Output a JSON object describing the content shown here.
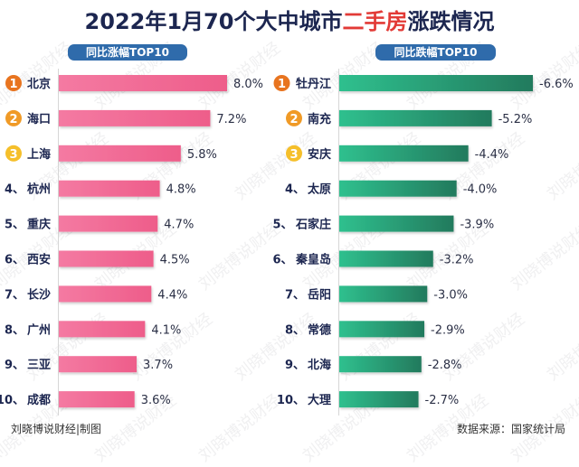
{
  "title": {
    "prefix": "2022年1月70个大中城市",
    "highlight": "二手房",
    "suffix": "涨跌情况"
  },
  "colors": {
    "rise_bar": "#f06c95",
    "fall_bar": "#2aa57a",
    "pill": "#2f6bab",
    "badge_1": "#e8741f",
    "badge_2": "#f09a26",
    "badge_3": "#f5bf2a",
    "highlight": "#e23a36"
  },
  "watermark": "刘晓博说财经",
  "footer": {
    "credit": "刘晓博说财经|制图",
    "source": "数据来源：国家统计局"
  },
  "chart_data": [
    {
      "type": "bar",
      "orientation": "horizontal",
      "title": "同比涨幅TOP10",
      "categories": [
        "北京",
        "海口",
        "上海",
        "杭州",
        "重庆",
        "西安",
        "长沙",
        "广州",
        "三亚",
        "成都"
      ],
      "ranks": [
        "1",
        "2",
        "3",
        "4、",
        "5、",
        "6、",
        "7、",
        "8、",
        "9、",
        "10、"
      ],
      "values": [
        8.0,
        7.2,
        5.8,
        4.8,
        4.7,
        4.5,
        4.4,
        4.1,
        3.7,
        3.6
      ],
      "labels": [
        "8.0%",
        "7.2%",
        "5.8%",
        "4.8%",
        "4.7%",
        "4.5%",
        "4.4%",
        "4.1%",
        "3.7%",
        "3.6%"
      ],
      "unit": "%",
      "xlim": [
        0,
        8.0
      ]
    },
    {
      "type": "bar",
      "orientation": "horizontal",
      "title": "同比跌幅TOP10",
      "categories": [
        "牡丹江",
        "南充",
        "安庆",
        "太原",
        "石家庄",
        "秦皇岛",
        "岳阳",
        "常德",
        "北海",
        "大理"
      ],
      "ranks": [
        "1",
        "2",
        "3",
        "4、",
        "5、",
        "6、",
        "7、",
        "8、",
        "9、",
        "10、"
      ],
      "values": [
        -6.6,
        -5.2,
        -4.4,
        -4.0,
        -3.9,
        -3.2,
        -3.0,
        -2.9,
        -2.8,
        -2.7
      ],
      "labels": [
        "-6.6%",
        "-5.2%",
        "-4.4%",
        "-4.0%",
        "-3.9%",
        "-3.2%",
        "-3.0%",
        "-2.9%",
        "-2.8%",
        "-2.7%"
      ],
      "unit": "%",
      "xlim": [
        0,
        -6.6
      ]
    }
  ]
}
